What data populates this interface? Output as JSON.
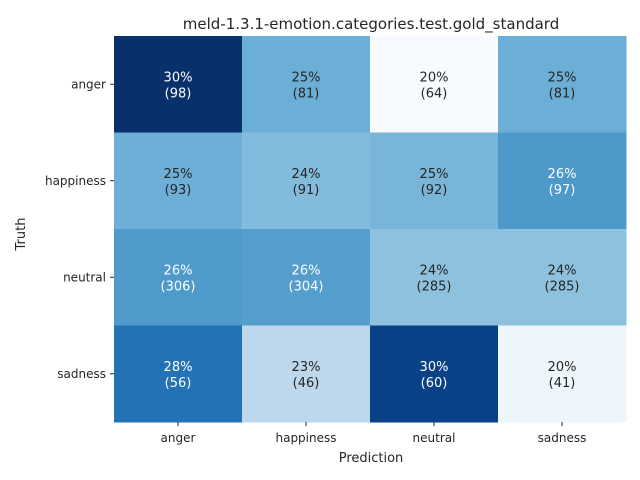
{
  "chart_data": {
    "type": "heatmap",
    "title": "meld-1.3.1-emotion.categories.test.gold_standard",
    "xlabel": "Prediction",
    "ylabel": "Truth",
    "x_categories": [
      "anger",
      "happiness",
      "neutral",
      "sadness"
    ],
    "y_categories": [
      "anger",
      "happiness",
      "neutral",
      "sadness"
    ],
    "percent_labels": [
      [
        "30%",
        "25%",
        "20%",
        "25%"
      ],
      [
        "25%",
        "24%",
        "25%",
        "26%"
      ],
      [
        "26%",
        "26%",
        "24%",
        "24%"
      ],
      [
        "28%",
        "23%",
        "30%",
        "20%"
      ]
    ],
    "counts": [
      [
        98,
        81,
        64,
        81
      ],
      [
        93,
        91,
        92,
        97
      ],
      [
        306,
        304,
        285,
        285
      ],
      [
        56,
        46,
        60,
        41
      ]
    ],
    "row_fractions": [
      [
        0.3025,
        0.25,
        0.1975,
        0.25
      ],
      [
        0.2494,
        0.244,
        0.2466,
        0.26
      ],
      [
        0.2592,
        0.2575,
        0.2413,
        0.2413
      ],
      [
        0.2759,
        0.2266,
        0.2956,
        0.202
      ]
    ],
    "colormap": "Blues",
    "color_range": [
      0.1975,
      0.3025
    ],
    "colorbar": false
  }
}
